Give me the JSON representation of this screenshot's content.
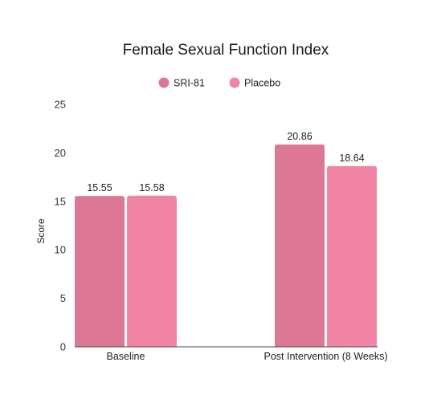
{
  "chart_data": {
    "type": "bar",
    "title": "Female Sexual Function Index",
    "ylabel": "Score",
    "xlabel": "",
    "categories": [
      "Baseline",
      "Post Intervention (8 Weeks)"
    ],
    "series": [
      {
        "name": "SRI-81",
        "values": [
          15.55,
          20.86
        ],
        "labels": [
          "15.55",
          "20.86"
        ],
        "color": "#dc7795"
      },
      {
        "name": "Placebo",
        "values": [
          15.58,
          18.64
        ],
        "labels": [
          "15.58",
          "18.64"
        ],
        "color": "#f285a6"
      }
    ],
    "ylim": [
      0,
      25
    ],
    "yticks": [
      "0",
      "5",
      "10",
      "15",
      "20",
      "25"
    ],
    "legend": "top-center",
    "grid": false
  }
}
